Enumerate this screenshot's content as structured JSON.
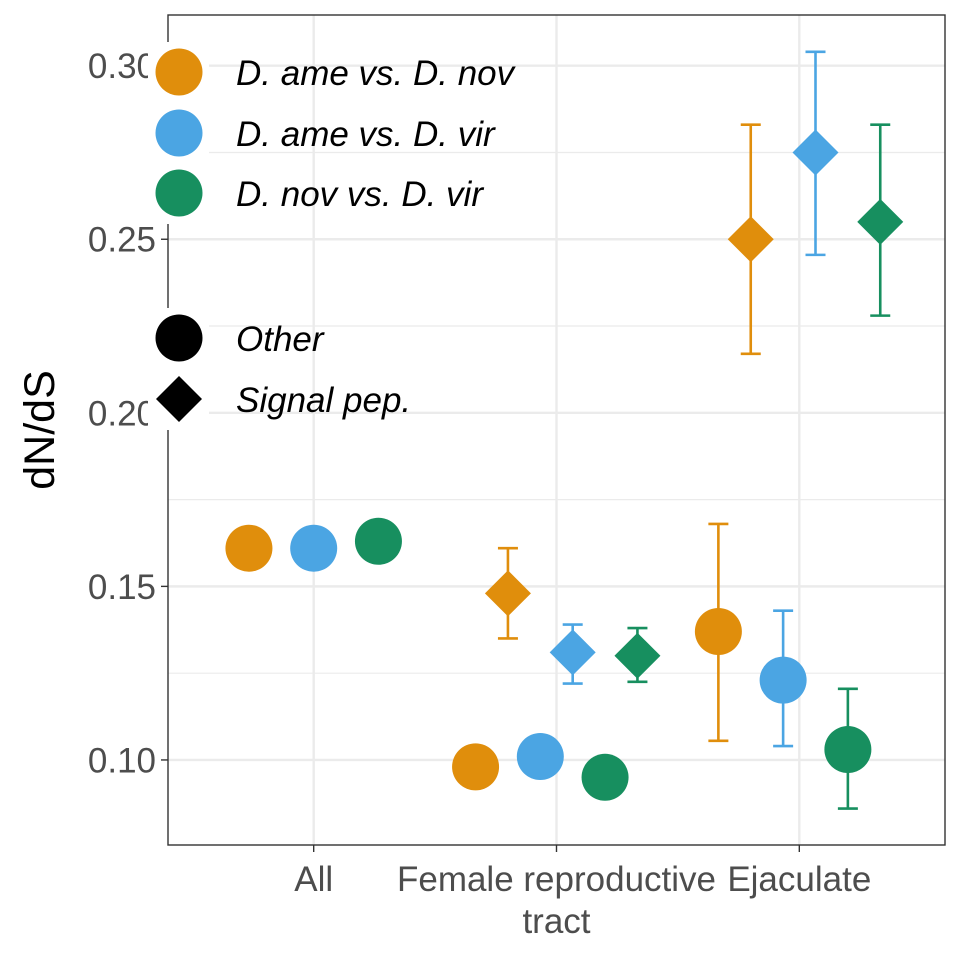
{
  "chart_data": {
    "type": "scatter",
    "title": "",
    "xlabel": "",
    "ylabel": "dN/dS",
    "categories": [
      "All",
      "Female reproductive\ntract",
      "Ejaculate"
    ],
    "ylim": [
      0.0755,
      0.3146
    ],
    "yticks": [
      0.1,
      0.15,
      0.2,
      0.25,
      0.3
    ],
    "ytick_labels": [
      "0.10",
      "0.15",
      "0.20",
      "0.25",
      "0.30"
    ],
    "minor_yticks": [
      0.125,
      0.175,
      0.225,
      0.275
    ],
    "grid": true,
    "legend_placement": "top-left (inside)",
    "color_legend": [
      {
        "label": "D. ame vs. D. nov",
        "color": "#E08E0C"
      },
      {
        "label": "D. ame vs. D. vir",
        "color": "#4BA5E3"
      },
      {
        "label": "D. nov vs. D. vir",
        "color": "#178F5F"
      }
    ],
    "shape_legend": [
      {
        "label": "Other",
        "shape": "circle"
      },
      {
        "label": "Signal pep.",
        "shape": "diamond"
      }
    ],
    "points": [
      {
        "category": "All",
        "comparison": "D. ame vs. D. nov",
        "type": "Other",
        "y": 0.161,
        "lower": null,
        "upper": null
      },
      {
        "category": "All",
        "comparison": "D. ame vs. D. vir",
        "type": "Other",
        "y": 0.161,
        "lower": null,
        "upper": null
      },
      {
        "category": "All",
        "comparison": "D. nov vs. D. vir",
        "type": "Other",
        "y": 0.163,
        "lower": null,
        "upper": null
      },
      {
        "category": "Female reproductive\ntract",
        "comparison": "D. ame vs. D. nov",
        "type": "Other",
        "y": 0.098,
        "lower": null,
        "upper": null
      },
      {
        "category": "Female reproductive\ntract",
        "comparison": "D. ame vs. D. nov",
        "type": "Signal pep.",
        "y": 0.148,
        "lower": 0.135,
        "upper": 0.161
      },
      {
        "category": "Female reproductive\ntract",
        "comparison": "D. ame vs. D. vir",
        "type": "Other",
        "y": 0.101,
        "lower": null,
        "upper": null
      },
      {
        "category": "Female reproductive\ntract",
        "comparison": "D. ame vs. D. vir",
        "type": "Signal pep.",
        "y": 0.131,
        "lower": 0.122,
        "upper": 0.139
      },
      {
        "category": "Female reproductive\ntract",
        "comparison": "D. nov vs. D. vir",
        "type": "Other",
        "y": 0.095,
        "lower": null,
        "upper": null
      },
      {
        "category": "Female reproductive\ntract",
        "comparison": "D. nov vs. D. vir",
        "type": "Signal pep.",
        "y": 0.13,
        "lower": 0.1225,
        "upper": 0.138
      },
      {
        "category": "Ejaculate",
        "comparison": "D. ame vs. D. nov",
        "type": "Other",
        "y": 0.137,
        "lower": 0.1055,
        "upper": 0.168
      },
      {
        "category": "Ejaculate",
        "comparison": "D. ame vs. D. nov",
        "type": "Signal pep.",
        "y": 0.25,
        "lower": 0.217,
        "upper": 0.283
      },
      {
        "category": "Ejaculate",
        "comparison": "D. ame vs. D. vir",
        "type": "Other",
        "y": 0.123,
        "lower": 0.104,
        "upper": 0.143
      },
      {
        "category": "Ejaculate",
        "comparison": "D. ame vs. D. vir",
        "type": "Signal pep.",
        "y": 0.275,
        "lower": 0.2455,
        "upper": 0.304
      },
      {
        "category": "Ejaculate",
        "comparison": "D. nov vs. D. vir",
        "type": "Other",
        "y": 0.103,
        "lower": 0.086,
        "upper": 0.1205
      },
      {
        "category": "Ejaculate",
        "comparison": "D. nov vs. D. vir",
        "type": "Signal pep.",
        "y": 0.255,
        "lower": 0.228,
        "upper": 0.283
      }
    ]
  }
}
